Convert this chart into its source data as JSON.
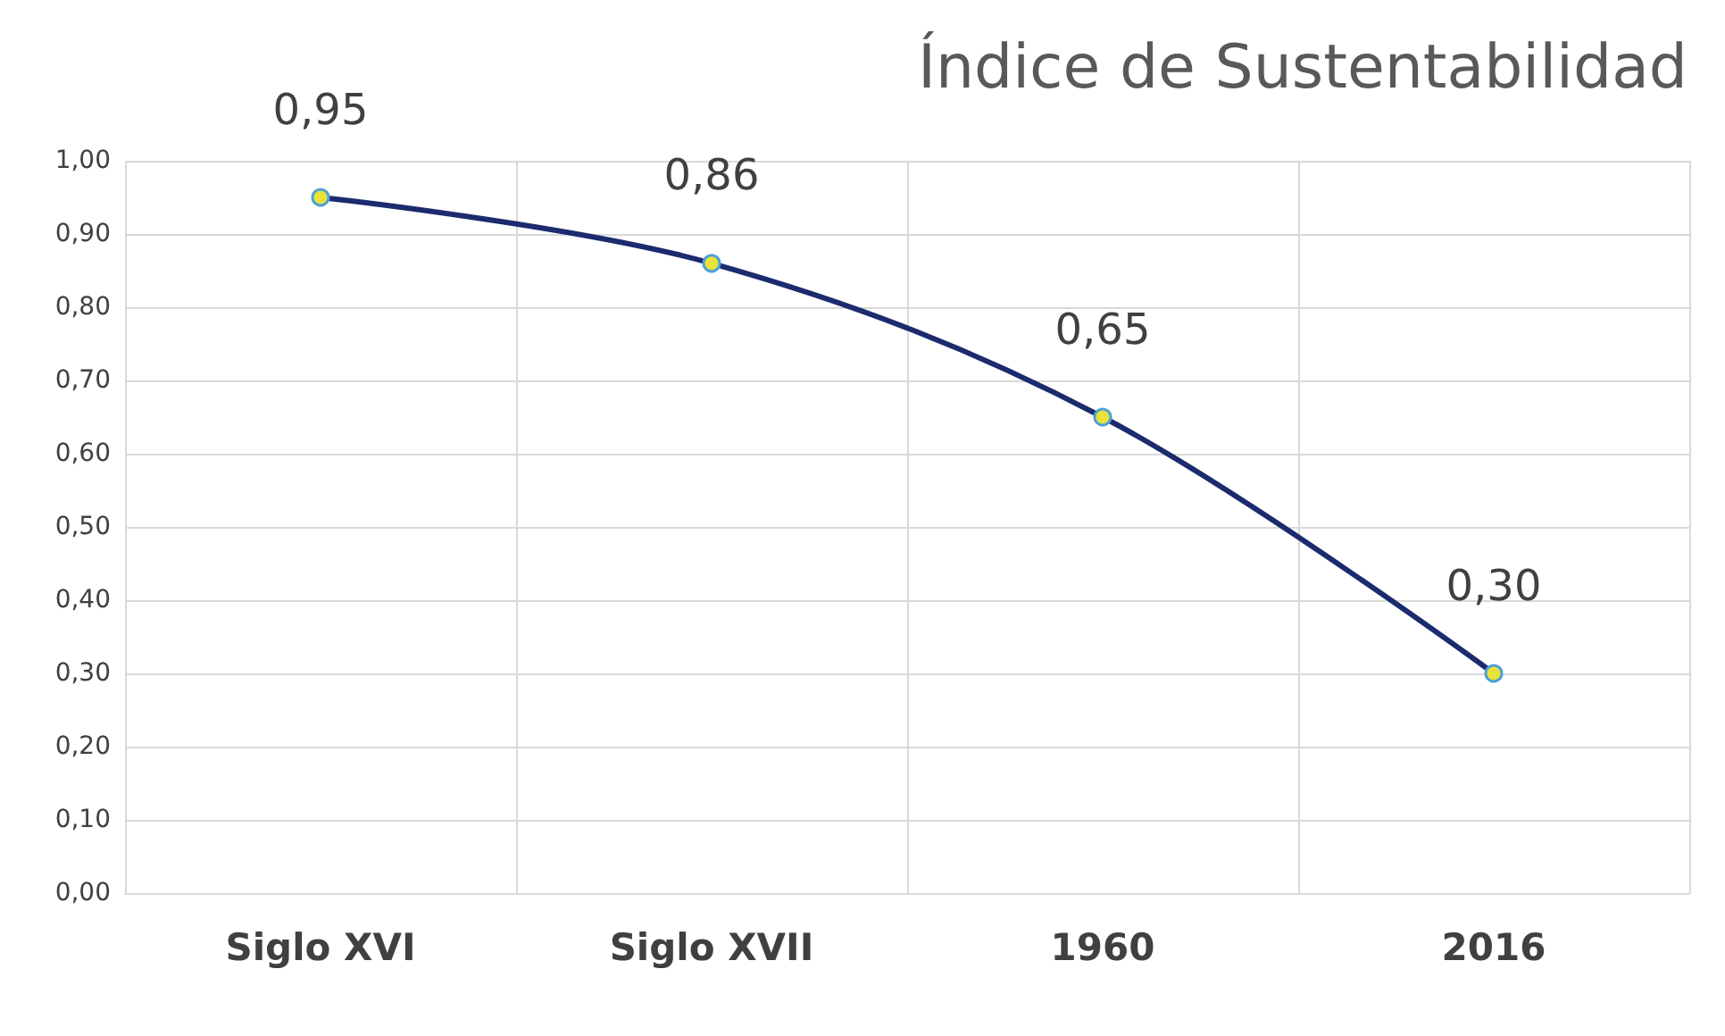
{
  "chart_data": {
    "type": "line",
    "title": "Índice de Sustentabilidad",
    "categories": [
      "Siglo XVI",
      "Siglo XVII",
      "1960",
      "2016"
    ],
    "series": [
      {
        "color": "#1c2b6e",
        "values": [
          0.95,
          0.86,
          0.65,
          0.3
        ],
        "value_labels": [
          "0,95",
          "0,86",
          "0,65",
          "0,30"
        ]
      }
    ],
    "ylim": [
      0,
      1
    ],
    "yticks": [
      {
        "value": 0,
        "label": "0,00"
      },
      {
        "value": 0.1,
        "label": "0,10"
      },
      {
        "value": 0.2,
        "label": "0,20"
      },
      {
        "value": 0.3,
        "label": "0,30"
      },
      {
        "value": 0.4,
        "label": "0,40"
      },
      {
        "value": 0.5,
        "label": "0,50"
      },
      {
        "value": 0.6,
        "label": "0,60"
      },
      {
        "value": 0.7,
        "label": "0,70"
      },
      {
        "value": 0.8,
        "label": "0,80"
      },
      {
        "value": 0.9,
        "label": "0,90"
      },
      {
        "value": 1,
        "label": "1,00"
      }
    ],
    "grid": true,
    "marker": "circle",
    "line_style": "solid"
  }
}
